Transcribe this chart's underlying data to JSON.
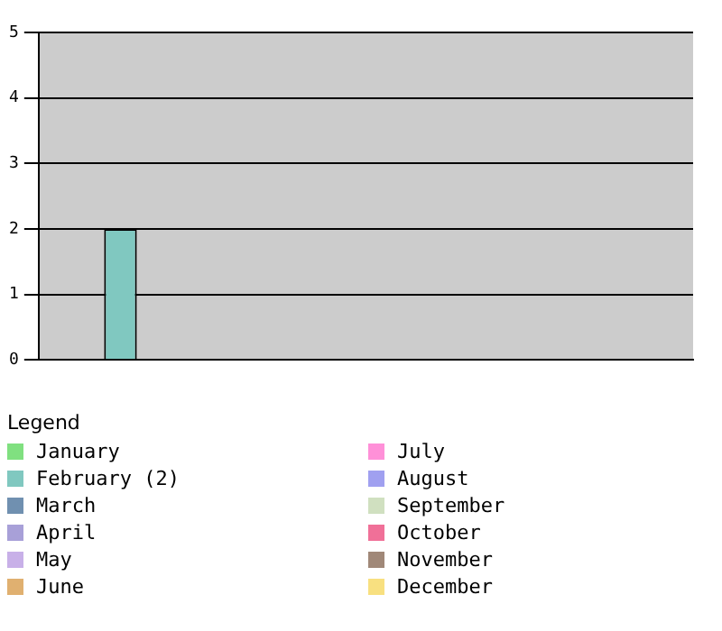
{
  "chart_data": {
    "type": "bar",
    "legend_title": "Legend",
    "legend": "bottom",
    "grid": "y",
    "ylim": [
      0,
      5
    ],
    "yticks": [
      0,
      1,
      2,
      3,
      4,
      5
    ],
    "categories": [
      null,
      null,
      null,
      null,
      null,
      null,
      null,
      null,
      null,
      null,
      null,
      null
    ],
    "series": [
      {
        "name": "January",
        "color": "#80e080",
        "values": [
          0,
          null,
          null,
          null,
          null,
          null,
          null,
          null,
          null,
          null,
          null,
          null
        ]
      },
      {
        "name": "February (2)",
        "color": "#80c8c0",
        "values": [
          null,
          2,
          null,
          null,
          null,
          null,
          null,
          null,
          null,
          null,
          null,
          null
        ]
      },
      {
        "name": "March",
        "color": "#7090b0",
        "values": [
          null,
          null,
          0,
          null,
          null,
          null,
          null,
          null,
          null,
          null,
          null,
          null
        ]
      },
      {
        "name": "April",
        "color": "#a8a0d8",
        "values": [
          null,
          null,
          null,
          0,
          null,
          null,
          null,
          null,
          null,
          null,
          null,
          null
        ]
      },
      {
        "name": "May",
        "color": "#c8b0e8",
        "values": [
          null,
          null,
          null,
          null,
          0,
          null,
          null,
          null,
          null,
          null,
          null,
          null
        ]
      },
      {
        "name": "June",
        "color": "#e0b070",
        "values": [
          null,
          null,
          null,
          null,
          null,
          0,
          null,
          null,
          null,
          null,
          null,
          null
        ]
      },
      {
        "name": "July",
        "color": "#ff90d8",
        "values": [
          null,
          null,
          null,
          null,
          null,
          null,
          0,
          null,
          null,
          null,
          null,
          null
        ]
      },
      {
        "name": "August",
        "color": "#a0a0f0",
        "values": [
          null,
          null,
          null,
          null,
          null,
          null,
          null,
          0,
          null,
          null,
          null,
          null
        ]
      },
      {
        "name": "September",
        "color": "#d0e0c0",
        "values": [
          null,
          null,
          null,
          null,
          null,
          null,
          null,
          null,
          0,
          null,
          null,
          null
        ]
      },
      {
        "name": "October",
        "color": "#f07098",
        "values": [
          null,
          null,
          null,
          null,
          null,
          null,
          null,
          null,
          null,
          0,
          null,
          null
        ]
      },
      {
        "name": "November",
        "color": "#a08878",
        "values": [
          null,
          null,
          null,
          null,
          null,
          null,
          null,
          null,
          null,
          null,
          0,
          null
        ]
      },
      {
        "name": "December",
        "color": "#f8e080",
        "values": [
          null,
          null,
          null,
          null,
          null,
          null,
          null,
          null,
          null,
          null,
          null,
          0
        ]
      }
    ]
  }
}
